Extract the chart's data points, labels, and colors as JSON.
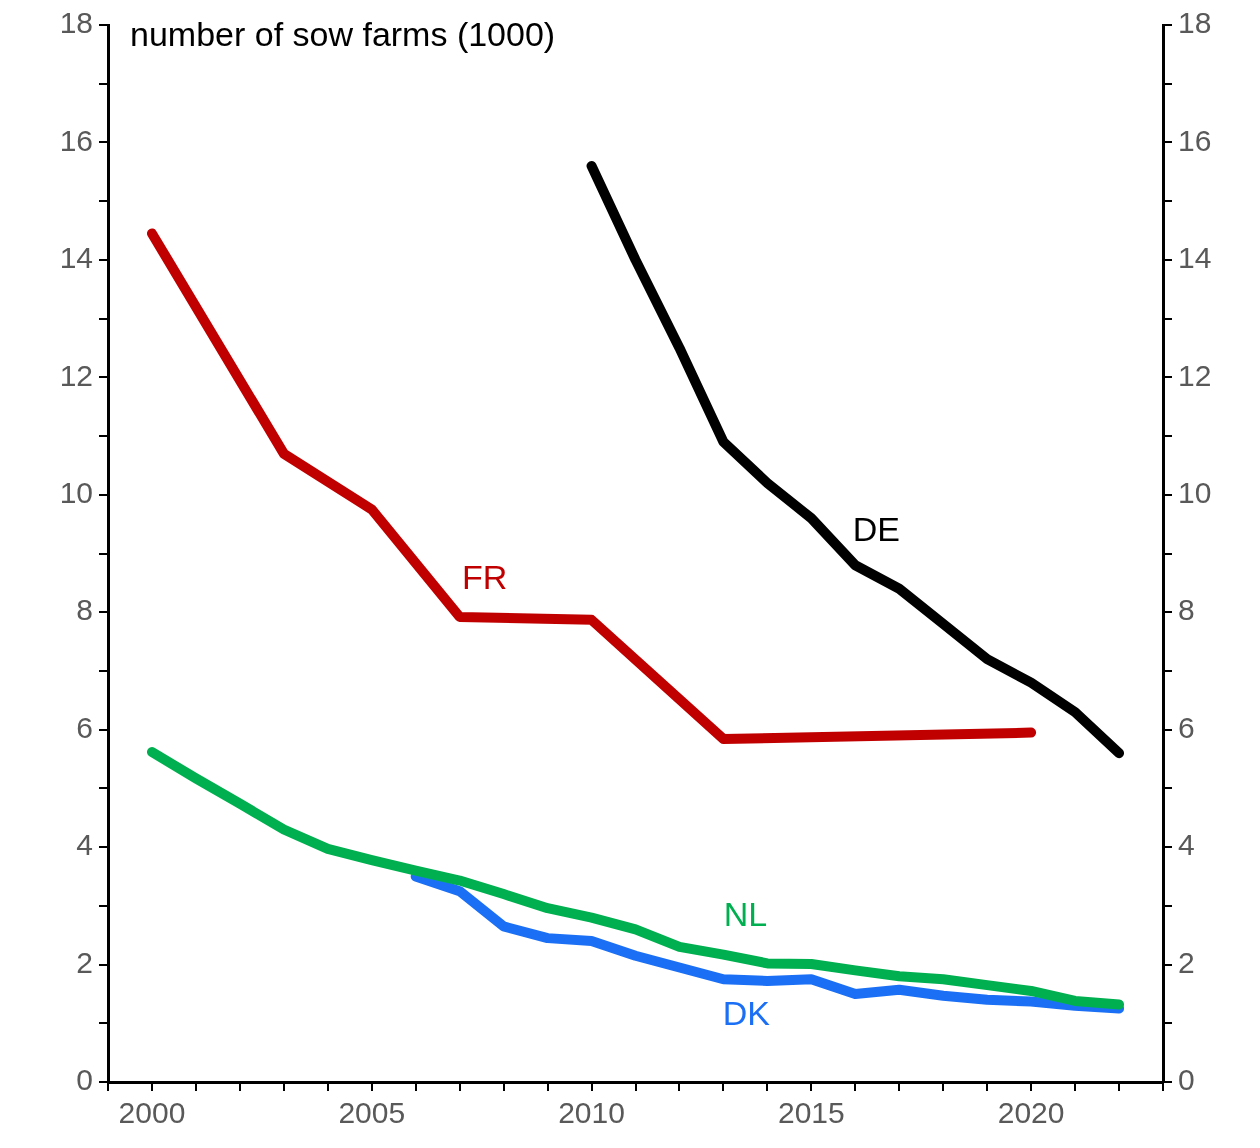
{
  "chart_data": {
    "type": "line",
    "title": "number of sow farms (1000)",
    "xlim": [
      1999,
      2023
    ],
    "xticks": [
      {
        "value": 1999,
        "label": null
      },
      2000,
      {
        "value": 2001,
        "label": null
      },
      {
        "value": 2002,
        "label": null
      },
      {
        "value": 2003,
        "label": null
      },
      {
        "value": 2004,
        "label": null
      },
      2005,
      {
        "value": 2006,
        "label": null
      },
      {
        "value": 2007,
        "label": null
      },
      {
        "value": 2008,
        "label": null
      },
      {
        "value": 2009,
        "label": null
      },
      2010,
      {
        "value": 2011,
        "label": null
      },
      {
        "value": 2012,
        "label": null
      },
      {
        "value": 2013,
        "label": null
      },
      {
        "value": 2014,
        "label": null
      },
      2015,
      {
        "value": 2016,
        "label": null
      },
      {
        "value": 2017,
        "label": null
      },
      {
        "value": 2018,
        "label": null
      },
      {
        "value": 2019,
        "label": null
      },
      2020,
      {
        "value": 2021,
        "label": null
      },
      {
        "value": 2022,
        "label": null
      },
      {
        "value": 2023,
        "label": null
      }
    ],
    "ylim": [
      0,
      18
    ],
    "yticks": [
      0,
      {
        "value": 1,
        "label": null
      },
      2,
      {
        "value": 3,
        "label": null
      },
      4,
      {
        "value": 5,
        "label": null
      },
      6,
      {
        "value": 7,
        "label": null
      },
      8,
      {
        "value": 9,
        "label": null
      },
      10,
      {
        "value": 11,
        "label": null
      },
      12,
      {
        "value": 13,
        "label": null
      },
      14,
      {
        "value": 15,
        "label": null
      },
      16,
      {
        "value": 17,
        "label": null
      },
      18
    ],
    "y2lim": [
      0,
      18
    ],
    "y2ticks": [
      0,
      {
        "value": 1,
        "label": null
      },
      2,
      {
        "value": 3,
        "label": null
      },
      4,
      {
        "value": 5,
        "label": null
      },
      6,
      {
        "value": 7,
        "label": null
      },
      8,
      {
        "value": 9,
        "label": null
      },
      10,
      {
        "value": 11,
        "label": null
      },
      12,
      {
        "value": 13,
        "label": null
      },
      14,
      {
        "value": 15,
        "label": null
      },
      16,
      {
        "value": 17,
        "label": null
      },
      18
    ],
    "grid": false,
    "legend": false,
    "marker": "none",
    "line_style": "solid",
    "series": [
      {
        "name": "DE",
        "color": "#000000",
        "x": [
          2010,
          2011,
          2012,
          2013,
          2014,
          2015,
          2016,
          2017,
          2018,
          2019,
          2020,
          2021,
          2022
        ],
        "values": [
          15.6,
          14.0,
          12.5,
          10.9,
          10.2,
          9.6,
          8.8,
          8.4,
          7.8,
          7.2,
          6.8,
          6.3,
          5.6
        ]
      },
      {
        "name": "FR",
        "color": "#c00000",
        "x": [
          2000,
          2003,
          2005,
          2007,
          2010,
          2013,
          2020
        ],
        "values": [
          14.45,
          10.7,
          9.75,
          7.92,
          7.87,
          5.84,
          5.95
        ]
      },
      {
        "name": "NL",
        "color": "#00b050",
        "x": [
          2000,
          2001,
          2002,
          2003,
          2004,
          2005,
          2006,
          2007,
          2008,
          2009,
          2010,
          2011,
          2012,
          2013,
          2014,
          2015,
          2016,
          2017,
          2018,
          2019,
          2020,
          2021,
          2022
        ],
        "values": [
          5.62,
          5.17,
          4.74,
          4.3,
          3.97,
          3.78,
          3.6,
          3.43,
          3.2,
          2.96,
          2.8,
          2.6,
          2.3,
          2.17,
          2.02,
          2.01,
          1.9,
          1.8,
          1.75,
          1.65,
          1.55,
          1.38,
          1.32
        ]
      },
      {
        "name": "DK",
        "color": "#1a6ff5",
        "x": [
          2006,
          2007,
          2008,
          2009,
          2010,
          2011,
          2012,
          2013,
          2014,
          2015,
          2016,
          2017,
          2018,
          2019,
          2020,
          2021,
          2022
        ],
        "values": [
          3.5,
          3.25,
          2.65,
          2.45,
          2.4,
          2.15,
          1.95,
          1.75,
          1.72,
          1.75,
          1.5,
          1.57,
          1.47,
          1.4,
          1.37,
          1.3,
          1.25
        ]
      }
    ]
  }
}
